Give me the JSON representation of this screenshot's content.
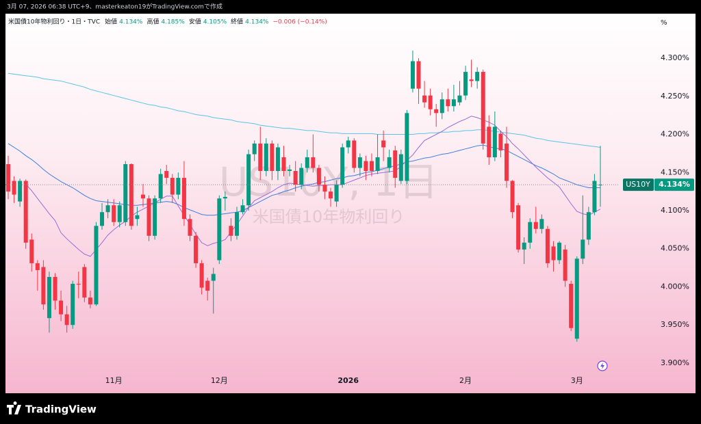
{
  "header": {
    "credit": "3月 07, 2026 06:38 UTC+9、masterkeaton19がTradingView.comで作成"
  },
  "chart_data": {
    "type": "candlestick",
    "title": "米国債10年物利回り・1日・TVC",
    "legend": [
      {
        "label": "始値",
        "value": "4.134%"
      },
      {
        "label": "高値",
        "value": "4.185%"
      },
      {
        "label": "安値",
        "value": "4.105%"
      },
      {
        "label": "終値",
        "value": "4.134%"
      }
    ],
    "change": "−0.006 (−0.14%)",
    "watermark": [
      "US10Y, 1日",
      "米国債10年物利回り"
    ],
    "unit": "%",
    "price_tag": {
      "symbol": "US10Y",
      "label": "4.134%"
    },
    "up_color": "#089981",
    "down_color": "#f23645",
    "grid": false,
    "categories": [
      null,
      null,
      null,
      null,
      null,
      null,
      null,
      null,
      null,
      null,
      null,
      null,
      null,
      null,
      null,
      null,
      null,
      null,
      "11月",
      null,
      null,
      null,
      null,
      null,
      null,
      null,
      null,
      null,
      null,
      null,
      null,
      null,
      null,
      null,
      null,
      null,
      "12月",
      null,
      null,
      null,
      null,
      null,
      null,
      null,
      null,
      null,
      null,
      null,
      null,
      null,
      null,
      null,
      null,
      null,
      null,
      null,
      null,
      null,
      "2026",
      null,
      null,
      null,
      null,
      null,
      null,
      null,
      null,
      null,
      null,
      null,
      null,
      null,
      null,
      null,
      null,
      null,
      null,
      null,
      "2月",
      null,
      null,
      null,
      null,
      null,
      null,
      null,
      null,
      null,
      null,
      null,
      null,
      null,
      null,
      null,
      null,
      null,
      null,
      "3月",
      null,
      null,
      null,
      null
    ],
    "open": [
      4.161,
      4.139,
      4.112,
      4.139,
      4.062,
      4.031,
      4.026,
      3.959,
      4.013,
      3.982,
      3.964,
      3.95,
      4.004,
      4.026,
      3.986,
      3.977,
      4.08,
      4.098,
      4.107,
      4.085,
      4.085,
      4.161,
      4.089,
      4.121,
      4.116,
      4.067,
      4.116,
      4.152,
      4.143,
      4.121,
      4.143,
      4.089,
      4.067,
      4.031,
      4.008,
      4.008,
      4.035,
      4.116,
      4.08,
      4.067,
      4.098,
      4.107,
      4.174,
      4.188,
      4.152,
      4.188,
      4.152,
      4.17,
      4.152,
      4.152,
      4.134,
      4.156,
      4.17,
      4.156,
      4.134,
      4.125,
      4.112,
      4.134,
      4.183,
      4.192,
      4.156,
      4.165,
      4.165,
      4.152,
      4.192,
      4.156,
      4.179,
      4.139,
      4.139,
      4.26,
      4.296,
      4.251,
      4.251,
      4.233,
      4.228,
      4.246,
      4.237,
      4.242,
      4.251,
      4.272,
      4.27,
      4.282,
      4.21,
      4.17,
      4.201,
      4.188,
      4.139,
      4.107,
      4.049,
      4.058,
      4.085,
      4.076,
      4.076,
      4.053,
      4.035,
      4.049,
      4.004,
      3.932,
      4.037,
      4.062,
      4.098,
      4.134
    ],
    "high": [
      4.172,
      4.145,
      4.142,
      4.141,
      4.07,
      4.035,
      4.035,
      4.02,
      4.018,
      3.995,
      3.975,
      4.008,
      4.02,
      4.03,
      3.995,
      4.085,
      4.11,
      4.115,
      4.115,
      4.112,
      4.165,
      4.162,
      4.105,
      4.135,
      4.12,
      4.12,
      4.155,
      4.16,
      4.148,
      4.15,
      4.165,
      4.095,
      4.072,
      4.035,
      4.012,
      4.025,
      4.12,
      4.125,
      4.09,
      4.105,
      4.115,
      4.18,
      4.192,
      4.21,
      4.195,
      4.192,
      4.188,
      4.185,
      4.16,
      4.165,
      4.162,
      4.18,
      4.2,
      4.16,
      4.145,
      4.13,
      4.14,
      4.188,
      4.197,
      4.195,
      4.175,
      4.172,
      4.175,
      4.2,
      4.205,
      4.18,
      4.185,
      4.18,
      4.232,
      4.31,
      4.3,
      4.27,
      4.26,
      4.24,
      4.255,
      4.26,
      4.265,
      4.27,
      4.29,
      4.298,
      4.288,
      4.285,
      4.225,
      4.23,
      4.205,
      4.21,
      4.14,
      4.11,
      4.065,
      4.09,
      4.105,
      4.095,
      4.08,
      4.06,
      4.06,
      4.055,
      4.008,
      4.04,
      4.12,
      4.105,
      4.148,
      4.185
    ],
    "low": [
      4.115,
      4.11,
      4.105,
      4.05,
      4.02,
      3.995,
      3.97,
      3.94,
      3.97,
      3.955,
      3.94,
      3.945,
      3.985,
      3.98,
      3.972,
      3.975,
      4.075,
      4.09,
      4.08,
      4.078,
      4.08,
      4.075,
      4.08,
      4.105,
      4.06,
      4.062,
      4.11,
      4.135,
      4.11,
      4.115,
      4.08,
      4.06,
      4.025,
      3.99,
      3.982,
      3.965,
      4.03,
      4.1,
      4.06,
      4.062,
      4.095,
      4.1,
      4.165,
      4.14,
      4.145,
      4.14,
      4.14,
      4.145,
      4.145,
      4.125,
      4.128,
      4.15,
      4.15,
      4.125,
      4.115,
      4.105,
      4.105,
      4.13,
      4.175,
      4.15,
      4.145,
      4.14,
      4.145,
      4.148,
      4.165,
      4.15,
      4.13,
      4.135,
      4.135,
      4.255,
      4.24,
      4.235,
      4.225,
      4.21,
      4.22,
      4.23,
      4.23,
      4.238,
      4.245,
      4.262,
      4.26,
      4.18,
      4.16,
      4.165,
      4.17,
      4.13,
      4.09,
      4.045,
      4.03,
      4.05,
      4.07,
      4.07,
      4.025,
      4.02,
      4.03,
      4.0,
      3.942,
      3.928,
      4.03,
      4.055,
      4.094,
      4.105
    ],
    "close": [
      4.125,
      4.121,
      4.139,
      4.058,
      4.031,
      4.022,
      3.977,
      4.013,
      3.982,
      3.964,
      3.95,
      4.004,
      4.003,
      3.986,
      3.977,
      4.08,
      4.098,
      4.107,
      4.085,
      4.107,
      4.161,
      4.08,
      4.094,
      4.116,
      4.067,
      4.116,
      4.148,
      4.143,
      4.121,
      4.143,
      4.089,
      4.067,
      4.031,
      3.999,
      3.995,
      4.017,
      4.116,
      4.118,
      4.067,
      4.098,
      4.107,
      4.174,
      4.188,
      4.152,
      4.188,
      4.152,
      4.183,
      4.152,
      4.154,
      4.134,
      4.156,
      4.17,
      4.156,
      4.134,
      4.125,
      4.116,
      4.134,
      4.183,
      4.192,
      4.156,
      4.17,
      4.152,
      4.152,
      4.17,
      4.183,
      4.17,
      4.143,
      4.174,
      4.228,
      4.296,
      4.26,
      4.242,
      4.233,
      4.228,
      4.246,
      4.237,
      4.246,
      4.251,
      4.282,
      4.27,
      4.282,
      4.188,
      4.17,
      4.21,
      4.179,
      4.139,
      4.098,
      4.049,
      4.058,
      4.085,
      4.076,
      4.089,
      4.031,
      4.035,
      4.058,
      4.008,
      3.946,
      4.037,
      4.062,
      4.098,
      4.139,
      4.134
    ],
    "overlays": [
      {
        "color": "#5bc3e6",
        "values": [
          4.28,
          4.279,
          4.278,
          4.277,
          4.276,
          4.275,
          4.273,
          4.272,
          4.271,
          4.27,
          4.268,
          4.266,
          4.264,
          4.262,
          4.259,
          4.257,
          4.255,
          4.253,
          4.251,
          4.249,
          4.247,
          4.245,
          4.243,
          4.241,
          4.239,
          4.238,
          4.236,
          4.235,
          4.233,
          4.231,
          4.23,
          4.228,
          4.226,
          4.225,
          4.224,
          4.222,
          4.221,
          4.22,
          4.219,
          4.217,
          4.216,
          4.215,
          4.214,
          4.212,
          4.211,
          4.21,
          4.209,
          4.208,
          4.208,
          4.207,
          4.206,
          4.205,
          4.205,
          4.204,
          4.203,
          4.202,
          4.202,
          4.201,
          4.201,
          4.201,
          4.201,
          4.201,
          4.201,
          4.2,
          4.2,
          4.2,
          4.2,
          4.2,
          4.2,
          4.2,
          4.201,
          4.201,
          4.202,
          4.202,
          4.203,
          4.203,
          4.204,
          4.204,
          4.205,
          4.205,
          4.206,
          4.206,
          4.205,
          4.204,
          4.203,
          4.202,
          4.201,
          4.2,
          4.199,
          4.197,
          4.195,
          4.194,
          4.192,
          4.191,
          4.19,
          4.189,
          4.188,
          4.187,
          4.186,
          4.185,
          4.184,
          4.183
        ]
      },
      {
        "color": "#3f7fd8",
        "values": [
          4.188,
          4.183,
          4.178,
          4.172,
          4.167,
          4.161,
          4.154,
          4.148,
          4.143,
          4.138,
          4.134,
          4.13,
          4.125,
          4.12,
          4.116,
          4.113,
          4.112,
          4.111,
          4.11,
          4.109,
          4.108,
          4.107,
          4.107,
          4.108,
          4.109,
          4.11,
          4.111,
          4.112,
          4.111,
          4.108,
          4.104,
          4.101,
          4.098,
          4.095,
          4.094,
          4.094,
          4.095,
          4.096,
          4.097,
          4.098,
          4.1,
          4.104,
          4.108,
          4.112,
          4.116,
          4.12,
          4.122,
          4.125,
          4.127,
          4.13,
          4.132,
          4.134,
          4.135,
          4.137,
          4.138,
          4.14,
          4.142,
          4.143,
          4.145,
          4.146,
          4.148,
          4.15,
          4.151,
          4.153,
          4.155,
          4.157,
          4.159,
          4.161,
          4.164,
          4.165,
          4.167,
          4.169,
          4.17,
          4.172,
          4.174,
          4.175,
          4.177,
          4.179,
          4.181,
          4.183,
          4.185,
          4.186,
          4.184,
          4.182,
          4.181,
          4.179,
          4.175,
          4.171,
          4.167,
          4.163,
          4.159,
          4.156,
          4.152,
          4.148,
          4.143,
          4.14,
          4.137,
          4.134,
          4.132,
          4.13,
          4.13,
          4.13
        ]
      },
      {
        "color": "#9b6bd6",
        "values": [
          null,
          null,
          null,
          4.135,
          4.126,
          4.116,
          4.106,
          4.096,
          4.087,
          4.071,
          4.063,
          4.056,
          4.049,
          4.043,
          4.04,
          4.049,
          4.058,
          4.068,
          4.075,
          4.081,
          4.086,
          4.093,
          4.098,
          4.102,
          4.106,
          4.11,
          4.115,
          4.119,
          4.119,
          4.106,
          4.094,
          4.082,
          4.069,
          4.058,
          4.054,
          4.057,
          4.059,
          4.062,
          4.072,
          4.082,
          4.093,
          4.104,
          4.113,
          4.117,
          4.121,
          4.125,
          4.13,
          4.134,
          4.136,
          4.135,
          4.134,
          4.133,
          4.132,
          4.133,
          4.133,
          4.134,
          4.134,
          4.134,
          4.137,
          4.14,
          4.143,
          4.146,
          4.148,
          4.149,
          4.15,
          4.151,
          4.152,
          4.158,
          4.166,
          4.173,
          4.183,
          4.192,
          4.196,
          4.2,
          4.204,
          4.209,
          4.213,
          4.217,
          4.22,
          4.224,
          4.222,
          4.219,
          4.216,
          4.212,
          4.204,
          4.197,
          4.188,
          4.181,
          4.173,
          4.165,
          4.157,
          4.15,
          4.143,
          4.137,
          4.131,
          4.12,
          4.109,
          4.099,
          4.096,
          4.094,
          4.098,
          4.102
        ]
      }
    ],
    "ylim": [
      3.8874,
      4.3386
    ],
    "yticks": [
      {
        "value": 3.9,
        "label": "3.900%"
      },
      {
        "value": 3.95,
        "label": "3.950%"
      },
      {
        "value": 4.0,
        "label": "4.000%"
      },
      {
        "value": 4.05,
        "label": "4.050%"
      },
      {
        "value": 4.1,
        "label": "4.100%"
      },
      {
        "value": 4.15,
        "label": "4.150%"
      },
      {
        "value": 4.2,
        "label": "4.200%"
      },
      {
        "value": 4.25,
        "label": "4.250%"
      },
      {
        "value": 4.3,
        "label": "4.300%"
      }
    ]
  },
  "footer": {
    "brand": "TradingView"
  }
}
